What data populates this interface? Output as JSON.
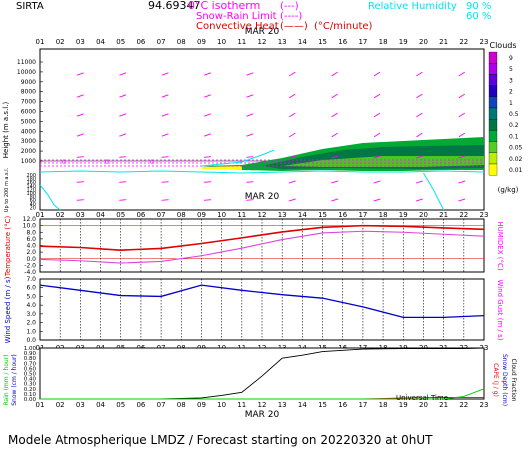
{
  "header": {
    "station": "SIRTA",
    "coords": "94.69347",
    "legend_iso": "0°C isotherm",
    "legend_snow": "Snow-Rain Limit",
    "legend_conv": "Convective Heat",
    "legend_conv_unit": "(°C/minute)",
    "legend_rh": "Relative Humidity",
    "rh_90": "90 %",
    "rh_60": "60 %",
    "iso_swatch": "(---)",
    "snow_swatch": "(----)",
    "conv_swatch": "(——)"
  },
  "footer": "Modele Atmospherique LMDZ / Forecast starting on 20220320 at 0hUT",
  "time_axis": {
    "hours": [
      "01",
      "02",
      "03",
      "04",
      "05",
      "06",
      "07",
      "08",
      "09",
      "10",
      "11",
      "12",
      "13",
      "14",
      "15",
      "16",
      "17",
      "18",
      "19",
      "20",
      "21",
      "22",
      "23"
    ],
    "date_label": "MAR 20",
    "axis_title": "Universal Time"
  },
  "colors": {
    "magenta": "#ff00ff",
    "cyan": "#00e5ee",
    "red": "#dd0000",
    "blue": "#0000cc",
    "green_text": "#00cc00"
  },
  "chart_data": [
    {
      "type": "heatmap",
      "title": "Clouds",
      "ylabel": "Height (m a.s.l.)",
      "ylabel2": "Up to 200 m a.s.l.",
      "yticks_upper": [
        "11000",
        "10000",
        "9000",
        "8000",
        "7000",
        "6000",
        "5000",
        "4000",
        "3000",
        "2000",
        "1000"
      ],
      "yticks_lower": [
        "200",
        "180",
        "160",
        "140",
        "120",
        "100",
        "80",
        "60",
        "40",
        "20"
      ],
      "colorbar": {
        "title": "Clouds",
        "unit": "(g/kg)",
        "labels": [
          "9",
          "5",
          "3",
          "2",
          "1",
          "0.5",
          "0.2",
          "0.1",
          "0.05",
          "0.02",
          "0.01"
        ],
        "colors": [
          "#cc00cc",
          "#aa00ee",
          "#5a00dd",
          "#2200bb",
          "#1144bb",
          "#007777",
          "#007744",
          "#00aa33",
          "#55cc22",
          "#bbee00",
          "#ffff00"
        ]
      },
      "cloud_extent_hours": [
        9,
        23
      ],
      "isotherm_height_m": 700
    },
    {
      "type": "line",
      "ylabel": "Temperature (°C)",
      "ylabel_right": "HUMIDEX (°C)",
      "yticks": [
        "12.0",
        "10.0",
        "8.0",
        "6.0",
        "4.0",
        "2.0",
        "0.0",
        "-2.0",
        "-4.0"
      ],
      "ylim": [
        -4,
        12
      ],
      "x": [
        1,
        3,
        5,
        7,
        9,
        11,
        13,
        15,
        17,
        19,
        21,
        23
      ],
      "series": [
        {
          "name": "Temperature",
          "values": [
            3.8,
            3.4,
            2.6,
            3.1,
            4.6,
            6.3,
            8.1,
            9.5,
            10.0,
            9.8,
            9.3,
            8.9
          ]
        },
        {
          "name": "Humidex",
          "values": [
            -0.2,
            -0.6,
            -1.3,
            -0.8,
            0.9,
            3.2,
            5.8,
            7.8,
            8.3,
            8.0,
            7.4,
            6.8
          ]
        }
      ],
      "ref_lines": [
        10.0,
        0.0
      ]
    },
    {
      "type": "line",
      "ylabel": "Wind Speed (m / s)",
      "ylabel_right": "Wind Gust (m / s)",
      "yticks": [
        "7.0",
        "6.0",
        "5.0",
        "4.0",
        "3.0",
        "2.0",
        "1.0",
        "0.0"
      ],
      "ylim": [
        0,
        7
      ],
      "x": [
        1,
        3,
        5,
        7,
        9,
        11,
        13,
        15,
        17,
        19,
        21,
        23
      ],
      "series": [
        {
          "name": "Wind Speed",
          "values": [
            6.3,
            5.7,
            5.1,
            5.0,
            6.3,
            5.7,
            5.2,
            4.8,
            3.8,
            2.6,
            2.6,
            2.8
          ]
        }
      ]
    },
    {
      "type": "line",
      "ylabel": "Rain (mm / hour)",
      "ylabel2": "Snow (cm / hour)",
      "ylabel_right": "CAPE (J / g)",
      "ylabel_right2": "Snow Depth (cm)",
      "ylabel_right3": "Cloud Fraction",
      "yticks": [
        "1.00",
        "0.90",
        "0.80",
        "0.70",
        "0.60",
        "0.50",
        "0.40",
        "0.30",
        "0.20",
        "0.10",
        "0.00"
      ],
      "ylim": [
        0,
        1
      ],
      "x": [
        1,
        3,
        5,
        7,
        9,
        10,
        11,
        12,
        13,
        14,
        15,
        17,
        19,
        21,
        22,
        23
      ],
      "series": [
        {
          "name": "Cloud Fraction",
          "values": [
            0.0,
            0.0,
            0.0,
            0.0,
            0.02,
            0.07,
            0.13,
            0.45,
            0.8,
            0.86,
            0.93,
            0.98,
            0.99,
            0.99,
            0.99,
            1.0
          ]
        },
        {
          "name": "CAPE",
          "values": [
            0,
            0,
            0,
            0,
            0,
            0,
            0,
            0,
            0,
            0,
            0,
            0,
            0.02,
            0.03,
            0.03,
            0.03
          ]
        },
        {
          "name": "Rain",
          "values": [
            0,
            0,
            0,
            0,
            0,
            0,
            0,
            0,
            0,
            0,
            0,
            0,
            0,
            0,
            0.05,
            0.2
          ]
        }
      ]
    }
  ]
}
